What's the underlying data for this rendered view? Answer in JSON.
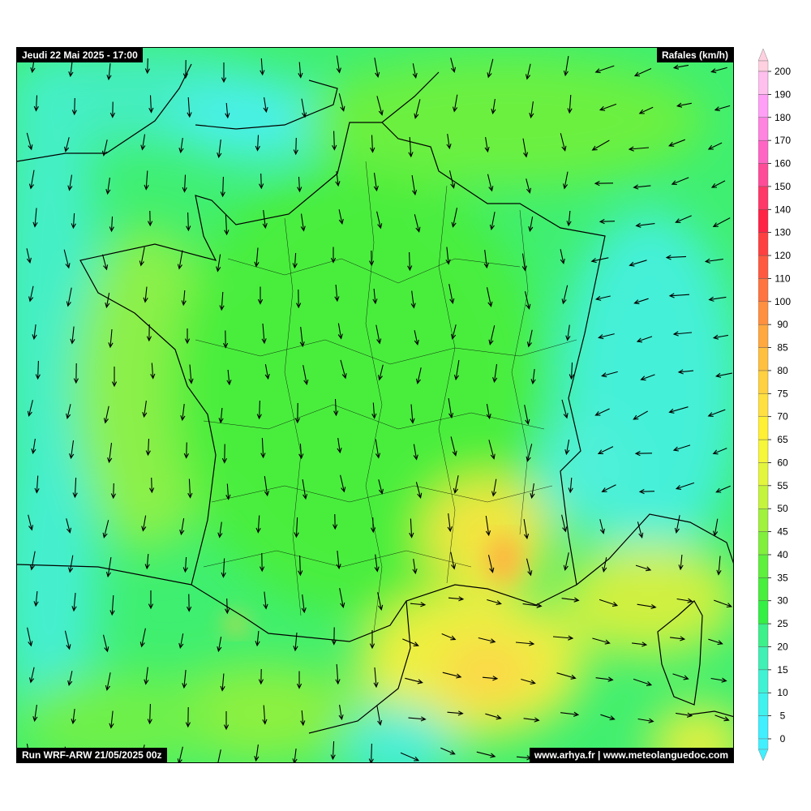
{
  "header": {
    "valid_time": "Jeudi 22 Mai 2025 - 17:00",
    "parameter": "Rafales (km/h)"
  },
  "footer": {
    "model_run": "Run WRF-ARW 21/05/2025 00z",
    "credits": "www.arhya.fr | www.meteolanguedoc.com"
  },
  "legend": {
    "unit": "km/h",
    "ticks": [
      "0",
      "5",
      "10",
      "15",
      "20",
      "25",
      "30",
      "35",
      "40",
      "45",
      "50",
      "55",
      "60",
      "65",
      "70",
      "75",
      "80",
      "85",
      "90",
      "100",
      "110",
      "120",
      "130",
      "140",
      "150",
      "160",
      "170",
      "180",
      "190",
      "200"
    ],
    "colors": [
      "#40f0ff",
      "#40f2ee",
      "#40f2d4",
      "#40f0b4",
      "#3cf08a",
      "#34ef44",
      "#48ef3c",
      "#5ef03c",
      "#80f03c",
      "#a0f23c",
      "#c4f43c",
      "#e4f63c",
      "#f6f63a",
      "#fff034",
      "#ffe040",
      "#ffd040",
      "#ffc040",
      "#ffa840",
      "#ff9040",
      "#ff7440",
      "#ff5a40",
      "#ff4040",
      "#ff2444",
      "#ff3868",
      "#ff4c98",
      "#ff66c4",
      "#ff84e0",
      "#ffa0f6",
      "#ffc0ee"
    ],
    "under_color": "#40f0ff",
    "over_color": "#ffd0e0"
  }
}
